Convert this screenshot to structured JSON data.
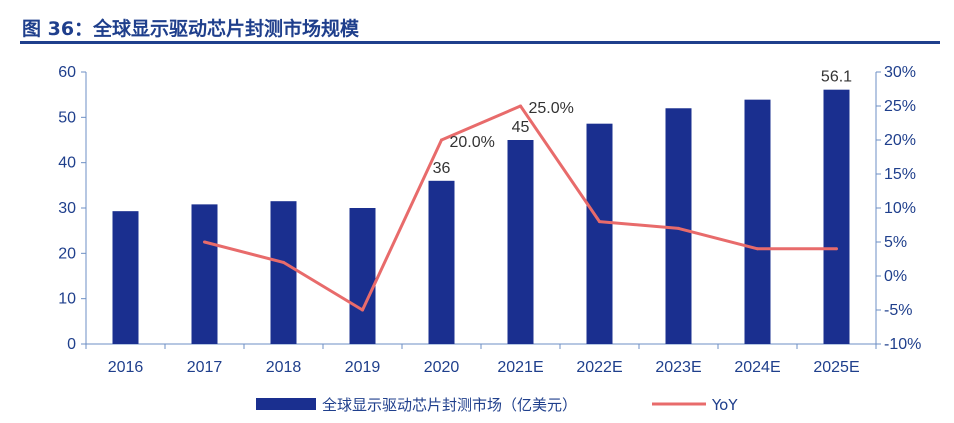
{
  "header": {
    "title": "图 36：全球显示驱动芯片封测市场规模"
  },
  "chart_data": {
    "type": "bar",
    "categories": [
      "2016",
      "2017",
      "2018",
      "2019",
      "2020",
      "2021E",
      "2022E",
      "2023E",
      "2024E",
      "2025E"
    ],
    "series": [
      {
        "name": "全球显示驱动芯片封测市场（亿美元）",
        "type": "bar",
        "axis": "left",
        "color": "#1a2f8f",
        "values": [
          29.3,
          30.8,
          31.5,
          30,
          36,
          45,
          48.6,
          52,
          53.9,
          56.1
        ],
        "labels": [
          null,
          null,
          null,
          null,
          "36",
          "45",
          null,
          null,
          null,
          "56.1"
        ]
      },
      {
        "name": "YoY",
        "type": "line",
        "axis": "right",
        "color": "#e86b6b",
        "values": [
          null,
          5,
          2,
          -5,
          20,
          25,
          8,
          7,
          4,
          4
        ],
        "labels": [
          null,
          null,
          null,
          null,
          "20.0%",
          "25.0%",
          null,
          null,
          null,
          null
        ]
      }
    ],
    "ylim": [
      0,
      60
    ],
    "yticks": [
      "0",
      "10",
      "20",
      "30",
      "40",
      "50",
      "60"
    ],
    "y2lim": [
      -10,
      30
    ],
    "y2ticks": [
      "-10%",
      "-5%",
      "0%",
      "5%",
      "10%",
      "15%",
      "20%",
      "25%",
      "30%"
    ],
    "grid": false,
    "legend": "bottom"
  }
}
